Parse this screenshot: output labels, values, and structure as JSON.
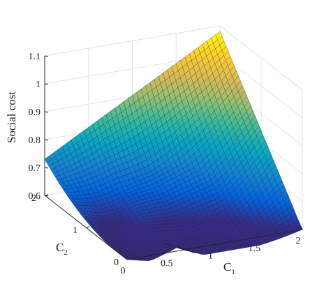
{
  "chart_data": {
    "type": "surface",
    "title": "",
    "xlabel": {
      "main": "C",
      "sub": "1"
    },
    "ylabel": {
      "main": "C",
      "sub": "2"
    },
    "zlabel": "Social cost",
    "xlim": [
      0,
      2
    ],
    "ylim": [
      0,
      2
    ],
    "zlim": [
      0.6,
      1.1
    ],
    "x_ticks": [
      "0",
      "0.5",
      "1",
      "1.5",
      "2"
    ],
    "x_tick_values": [
      0,
      0.5,
      1,
      1.5,
      2
    ],
    "y_ticks": [
      "0",
      "1",
      "2"
    ],
    "y_tick_values": [
      0,
      1,
      2
    ],
    "z_ticks": [
      "0.6",
      "0.7",
      "0.8",
      "0.9",
      "1",
      "1.1"
    ],
    "z_tick_values": [
      0.6,
      0.7,
      0.8,
      0.9,
      1.0,
      1.1
    ],
    "grid": true,
    "colormap": "parula",
    "colormap_colors": [
      "#352a87",
      "#0363e1",
      "#1485d4",
      "#06a7c6",
      "#38b99e",
      "#92bf73",
      "#d9ba56",
      "#fcce2e",
      "#f9fb0e"
    ],
    "corner_values": {
      "c1_0_c2_0": 0.6,
      "c1_2_c2_0": 0.6,
      "c1_0_c2_2": 0.73,
      "c1_2_c2_2": 1.08
    },
    "minimum": {
      "c1": 1.25,
      "c2": 0.55,
      "value": 0.58
    },
    "grid_resolution": 40
  }
}
